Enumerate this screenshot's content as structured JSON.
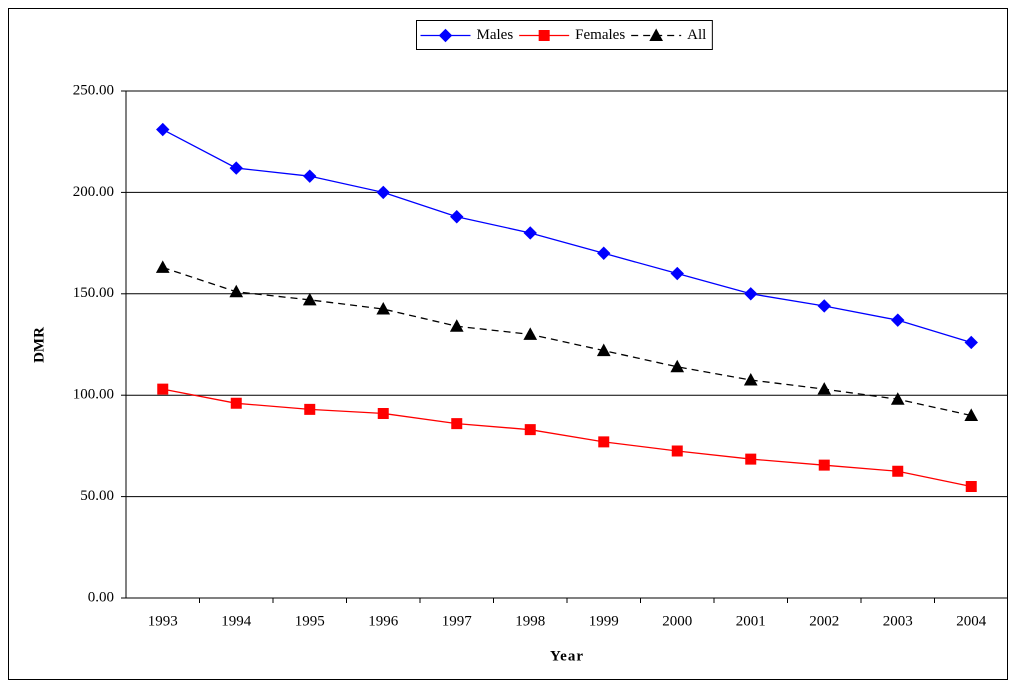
{
  "chart_data": {
    "type": "line",
    "x_label": "Year",
    "y_label": "DMR",
    "categories": [
      "1993",
      "1994",
      "1995",
      "1996",
      "1997",
      "1998",
      "1999",
      "2000",
      "2001",
      "2002",
      "2003",
      "2004"
    ],
    "series": [
      {
        "name": "Males",
        "color": "#0000ff",
        "marker": "diamond",
        "dashed": false,
        "values": [
          231,
          212,
          208,
          200,
          188,
          180,
          170,
          160,
          150,
          144,
          137,
          126
        ]
      },
      {
        "name": "Females",
        "color": "#ff0000",
        "marker": "square",
        "dashed": false,
        "values": [
          103,
          96,
          93,
          91,
          86,
          83,
          77,
          72.5,
          68.5,
          65.5,
          62.5,
          55
        ]
      },
      {
        "name": "All",
        "color": "#000000",
        "marker": "triangle",
        "dashed": true,
        "values": [
          163,
          151,
          147,
          142.5,
          134,
          130,
          122,
          114,
          107.5,
          103,
          98,
          90
        ]
      }
    ],
    "ylim": [
      0,
      250
    ],
    "yticks": [
      {
        "value": 0,
        "label": "0.00"
      },
      {
        "value": 50,
        "label": "50.00"
      },
      {
        "value": 100,
        "label": "100.00"
      },
      {
        "value": 150,
        "label": "150.00"
      },
      {
        "value": 200,
        "label": "200.00"
      },
      {
        "value": 250,
        "label": "250.00"
      }
    ],
    "grid": true,
    "legend": "top"
  }
}
